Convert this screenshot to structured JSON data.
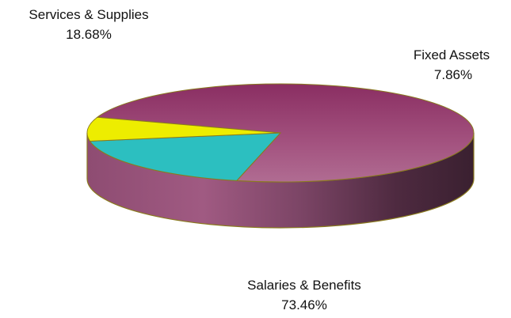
{
  "chart_data": {
    "type": "pie",
    "style": "3d",
    "title": "",
    "slices": [
      {
        "name": "Salaries & Benefits",
        "value": 73.46,
        "label": "73.46%",
        "color": "#9A3A6E"
      },
      {
        "name": "Services & Supplies",
        "value": 18.68,
        "label": "18.68%",
        "color": "#2CBFC0"
      },
      {
        "name": "Fixed Assets",
        "value": 7.86,
        "label": "7.86%",
        "color": "#EDED00"
      }
    ],
    "edge_color": "#8A7A1E"
  }
}
